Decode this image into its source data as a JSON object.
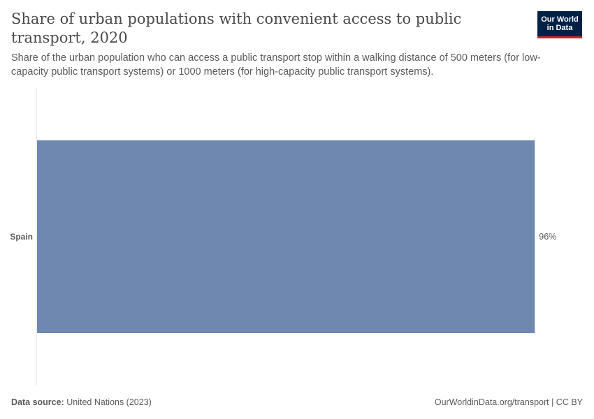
{
  "header": {
    "title": "Share of urban populations with convenient access to public transport, 2020",
    "subtitle": "Share of the urban population who can access a public transport stop within a walking distance of 500 meters (for low-capacity public transport systems) or 1000 meters (for high-capacity public transport systems).",
    "logo_line1": "Our World",
    "logo_line2": "in Data"
  },
  "footer": {
    "source_label": "Data source:",
    "source_value": "United Nations (2023)",
    "url_license": "OurWorldinData.org/transport | CC BY"
  },
  "colors": {
    "bar": "#6f88b0",
    "axis": "#dddddd"
  },
  "chart_data": {
    "type": "bar",
    "orientation": "horizontal",
    "categories": [
      "Spain"
    ],
    "values": [
      96
    ],
    "value_labels": [
      "96%"
    ],
    "xlim": [
      0,
      100
    ],
    "title": "Share of urban populations with convenient access to public transport, 2020",
    "xlabel": "",
    "ylabel": "",
    "grid": false,
    "legend": "none"
  }
}
